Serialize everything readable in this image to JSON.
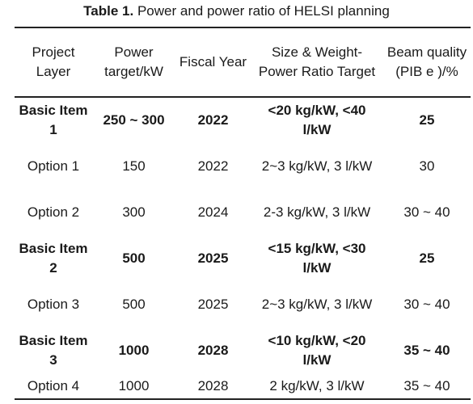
{
  "caption": {
    "label": "Table 1.",
    "text": "Power and power ratio of HELSI planning"
  },
  "headers": [
    "Project Layer",
    "Power target/kW",
    "Fiscal Year",
    "Size & Weight-Power Ratio Target",
    "Beam quality (PIB e )/%"
  ],
  "rows": [
    {
      "bold": true,
      "cells": [
        "Basic Item 1",
        "250 ~ 300",
        "2022",
        "<20 kg/kW, <40 l/kW",
        "25"
      ]
    },
    {
      "bold": false,
      "cells": [
        "Option 1",
        "150",
        "2022",
        "2~3 kg/kW, 3 l/kW",
        "30"
      ]
    },
    {
      "bold": false,
      "cells": [
        "Option 2",
        "300",
        "2024",
        "2-3 kg/kW, 3 l/kW",
        "30 ~ 40"
      ]
    },
    {
      "bold": true,
      "cells": [
        "Basic Item 2",
        "500",
        "2025",
        "<15 kg/kW, <30 l/kW",
        "25"
      ]
    },
    {
      "bold": false,
      "cells": [
        "Option 3",
        "500",
        "2025",
        "2~3 kg/kW, 3 l/kW",
        "30 ~ 40"
      ]
    },
    {
      "bold": true,
      "cells": [
        "Basic Item 3",
        "1000",
        "2028",
        "<10 kg/kW, <20 l/kW",
        "35 ~ 40"
      ]
    },
    {
      "bold": false,
      "cells": [
        "Option 4",
        "1000",
        "2028",
        "2 kg/kW, 3 l/kW",
        "35 ~ 40"
      ]
    }
  ]
}
